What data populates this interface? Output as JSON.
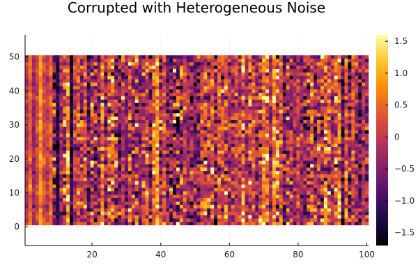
{
  "chart_data": {
    "type": "heatmap",
    "title": "Corrupted with Heterogeneous Noise",
    "xlabel": "",
    "ylabel": "",
    "x_range": [
      1,
      100
    ],
    "y_range": [
      1,
      50
    ],
    "xlim": [
      0.5,
      100.5
    ],
    "ylim": [
      -5.5,
      56.5
    ],
    "x_ticks": [
      20,
      40,
      60,
      80,
      100
    ],
    "y_ticks": [
      0,
      10,
      20,
      30,
      40,
      50
    ],
    "colorbar": {
      "min": -1.7,
      "max": 1.6,
      "ticks": [
        -1.5,
        -1.0,
        -0.5,
        0,
        0.5,
        1.0,
        1.5
      ],
      "tick_labels": [
        "−1.5",
        "−1.0",
        "−0.5",
        "0",
        "0.5",
        "1.0",
        "1.5"
      ],
      "colormap": "inferno"
    },
    "grid": true,
    "legend": "colorbar-right",
    "noise_seed": 7
  }
}
